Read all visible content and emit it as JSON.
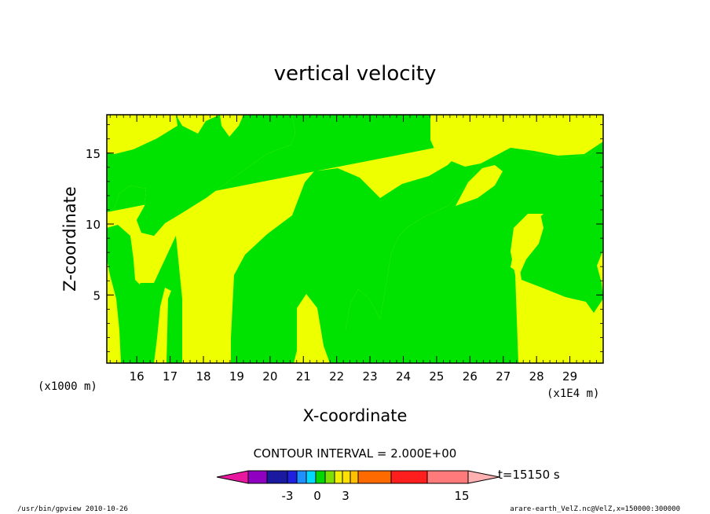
{
  "chart_data": {
    "type": "contour",
    "title": "vertical velocity",
    "xlabel": "X-coordinate",
    "ylabel": "Z-coordinate",
    "x_unit": "(x1E4 m)",
    "y_unit": "(x1000 m)",
    "x_ticks": [
      "16",
      "17",
      "18",
      "19",
      "20",
      "21",
      "22",
      "23",
      "24",
      "25",
      "26",
      "27",
      "28",
      "29"
    ],
    "y_ticks": [
      "5",
      "10",
      "15"
    ],
    "xlim": [
      15.1,
      30.0
    ],
    "ylim": [
      0.2,
      17.7
    ],
    "contour_interval": "CONTOUR INTERVAL = 2.000E+00",
    "colorbar_labels": [
      "-3",
      "0",
      "3",
      "15"
    ],
    "time_label": "t=15150 s",
    "colors": {
      "positive_fill": "#eeff00",
      "negative_fill": "#00e300",
      "colorbar": [
        "#e8199f",
        "#9000c0",
        "#1a1aa0",
        "#2020e0",
        "#1e90ff",
        "#00d8ff",
        "#00d800",
        "#7ee000",
        "#f0f000",
        "#ffe000",
        "#ffc000",
        "#ff6a00",
        "#ff1e1e",
        "#ff7a7a",
        "#ffb0b0"
      ]
    }
  },
  "footer": {
    "program": "/usr/bin/gpview  2010-10-26",
    "source": "arare-earth_VelZ.nc@VelZ,x=150000:300000"
  }
}
